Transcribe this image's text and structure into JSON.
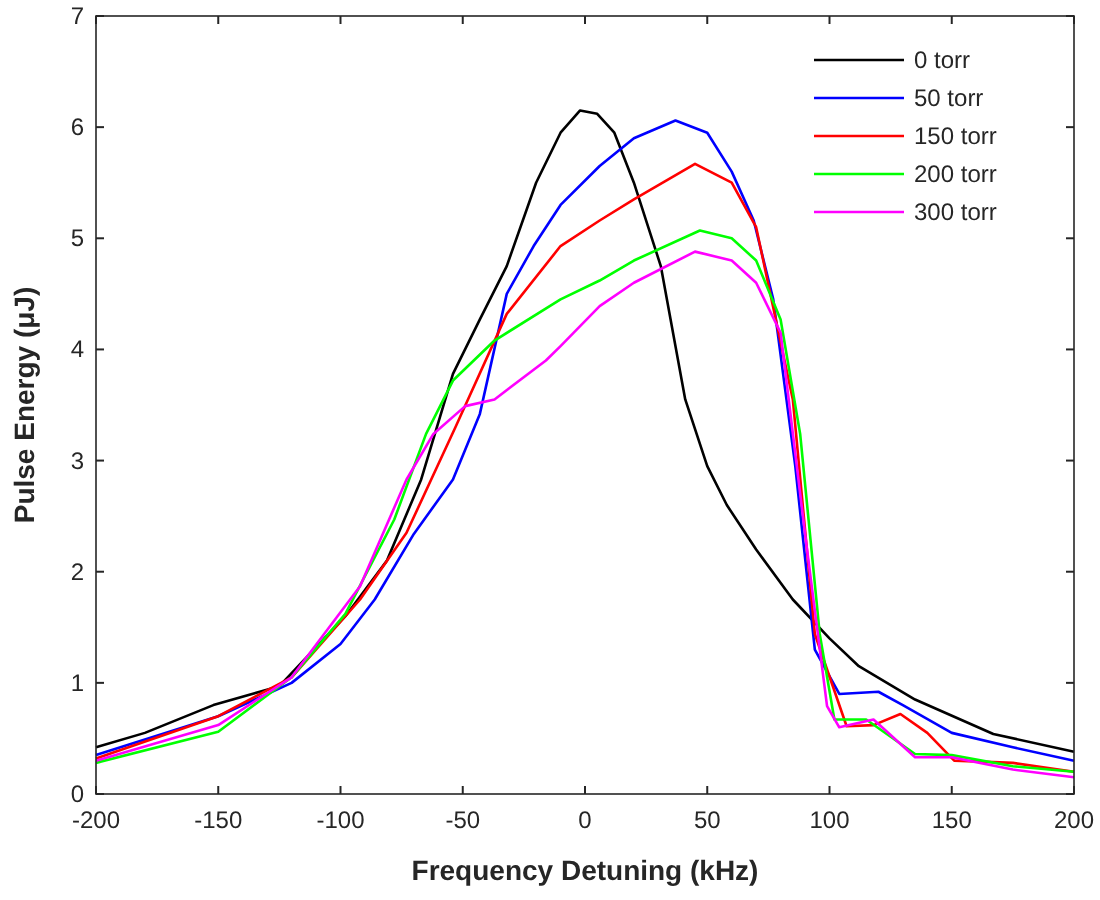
{
  "chart_data": {
    "type": "line",
    "xlabel": "Frequency Detuning (kHz)",
    "ylabel": "Pulse Energy (μJ)",
    "xlim": [
      -200,
      200
    ],
    "ylim": [
      0,
      7
    ],
    "xticks": [
      -200,
      -150,
      -100,
      -50,
      0,
      50,
      100,
      150,
      200
    ],
    "yticks": [
      0,
      1,
      2,
      3,
      4,
      5,
      6,
      7
    ],
    "legend": "top right",
    "grid": false,
    "marker": "none",
    "line_style": "solid",
    "series": [
      {
        "name": "0 torr",
        "color": "#000000",
        "x": [
          -200,
          -180,
          -152,
          -125,
          -98,
          -81,
          -67,
          -54,
          -43,
          -32,
          -20,
          -10,
          -2,
          5,
          12,
          20,
          31,
          41,
          50,
          58,
          70,
          85,
          100,
          112,
          135,
          167,
          200
        ],
        "values": [
          0.42,
          0.55,
          0.8,
          0.97,
          1.6,
          2.1,
          2.83,
          3.78,
          4.27,
          4.75,
          5.5,
          5.95,
          6.15,
          6.12,
          5.95,
          5.5,
          4.75,
          3.55,
          2.95,
          2.6,
          2.2,
          1.75,
          1.4,
          1.15,
          0.85,
          0.54,
          0.38
        ]
      },
      {
        "name": "50 torr",
        "color": "#0000ff",
        "x": [
          -200,
          -150,
          -120,
          -100,
          -86,
          -70,
          -54,
          -43,
          -32,
          -21,
          -10,
          6,
          20,
          37,
          50,
          60,
          69,
          77,
          86,
          94,
          104,
          120,
          130,
          150,
          175,
          200
        ],
        "values": [
          0.35,
          0.7,
          1.0,
          1.35,
          1.75,
          2.34,
          2.83,
          3.42,
          4.5,
          4.93,
          5.3,
          5.65,
          5.9,
          6.06,
          5.95,
          5.6,
          5.16,
          4.45,
          2.95,
          1.3,
          0.9,
          0.92,
          0.8,
          0.55,
          0.42,
          0.3
        ]
      },
      {
        "name": "150 torr",
        "color": "#ff0000",
        "x": [
          -200,
          -150,
          -120,
          -92,
          -73,
          -53,
          -32,
          -10,
          6,
          20,
          45,
          60,
          70,
          85,
          94,
          107,
          118,
          129,
          140,
          151,
          175,
          200
        ],
        "values": [
          0.32,
          0.7,
          1.05,
          1.75,
          2.35,
          3.3,
          4.32,
          4.93,
          5.16,
          5.35,
          5.67,
          5.5,
          5.1,
          3.55,
          1.44,
          0.61,
          0.62,
          0.72,
          0.55,
          0.3,
          0.28,
          0.2
        ]
      },
      {
        "name": "200 torr",
        "color": "#00ff00",
        "x": [
          -200,
          -150,
          -120,
          -98,
          -78,
          -65,
          -54,
          -37,
          -10,
          6,
          20,
          47,
          60,
          70,
          80,
          88,
          96,
          102,
          115,
          135,
          150,
          175,
          200
        ],
        "values": [
          0.28,
          0.56,
          1.05,
          1.62,
          2.47,
          3.24,
          3.72,
          4.08,
          4.45,
          4.62,
          4.8,
          5.07,
          5.0,
          4.8,
          4.27,
          3.24,
          1.44,
          0.67,
          0.67,
          0.36,
          0.35,
          0.25,
          0.2
        ]
      },
      {
        "name": "300 torr",
        "color": "#ff00ff",
        "x": [
          -200,
          -150,
          -120,
          -92,
          -73,
          -62,
          -49,
          -37,
          -16,
          -10,
          6,
          20,
          45,
          60,
          70,
          80,
          90,
          99,
          104,
          118,
          135,
          150,
          175,
          200
        ],
        "values": [
          0.3,
          0.62,
          1.05,
          1.87,
          2.83,
          3.24,
          3.49,
          3.55,
          3.9,
          4.03,
          4.39,
          4.6,
          4.88,
          4.8,
          4.6,
          4.15,
          2.34,
          0.79,
          0.6,
          0.67,
          0.33,
          0.33,
          0.22,
          0.15
        ]
      }
    ]
  }
}
